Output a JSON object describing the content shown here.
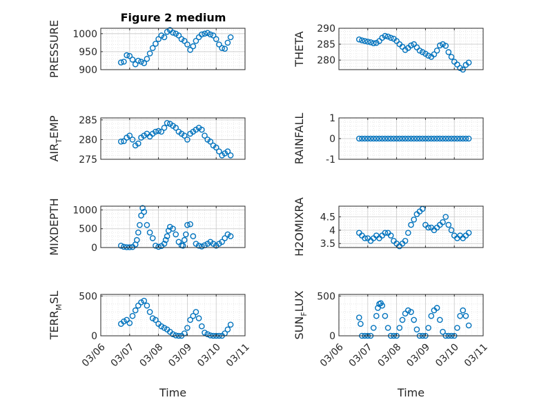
{
  "figure_title": "Figure 2 medium",
  "chart_data": [
    {
      "type": "scatter",
      "col": 0,
      "row": 0,
      "ylabel": "PRESSURE",
      "ylim": [
        900,
        1015
      ],
      "yticks": [
        900,
        950,
        1000
      ],
      "ytick_labels": [
        "900",
        "950",
        "1000"
      ],
      "xlim": [
        0,
        5
      ],
      "xticks": [
        0,
        1,
        2,
        3,
        4,
        5
      ],
      "x": [
        0.7,
        0.8,
        0.9,
        1.0,
        1.1,
        1.2,
        1.3,
        1.4,
        1.5,
        1.6,
        1.7,
        1.8,
        1.9,
        2.0,
        2.1,
        2.2,
        2.3,
        2.4,
        2.5,
        2.6,
        2.7,
        2.8,
        2.9,
        3.0,
        3.1,
        3.2,
        3.3,
        3.4,
        3.5,
        3.6,
        3.7,
        3.8,
        3.9,
        4.0,
        4.1,
        4.2,
        4.3,
        4.4,
        4.5
      ],
      "y": [
        920,
        922,
        940,
        938,
        928,
        915,
        925,
        922,
        918,
        930,
        945,
        960,
        972,
        985,
        995,
        990,
        1005,
        1010,
        1003,
        1000,
        995,
        985,
        980,
        970,
        955,
        965,
        980,
        990,
        998,
        1000,
        1002,
        998,
        995,
        985,
        970,
        960,
        958,
        975,
        990
      ]
    },
    {
      "type": "scatter",
      "col": 1,
      "row": 0,
      "ylabel": "THETA",
      "ylim": [
        277,
        290
      ],
      "yticks": [
        280,
        285,
        290
      ],
      "ytick_labels": [
        "280",
        "285",
        "290"
      ],
      "xlim": [
        0,
        5
      ],
      "xticks": [
        0,
        1,
        2,
        3,
        4,
        5
      ],
      "x": [
        0.7,
        0.8,
        0.9,
        1.0,
        1.1,
        1.2,
        1.3,
        1.4,
        1.5,
        1.6,
        1.7,
        1.8,
        1.9,
        2.0,
        2.1,
        2.2,
        2.3,
        2.4,
        2.5,
        2.6,
        2.7,
        2.8,
        2.9,
        3.0,
        3.1,
        3.2,
        3.3,
        3.4,
        3.5,
        3.6,
        3.7,
        3.8,
        3.9,
        4.0,
        4.1,
        4.2,
        4.3,
        4.4,
        4.5
      ],
      "y": [
        286.5,
        286.2,
        286,
        285.8,
        285.6,
        285.3,
        285.4,
        286,
        287,
        287.6,
        287.4,
        287,
        286.7,
        286,
        285,
        284.2,
        283.2,
        283.8,
        284.6,
        285,
        284,
        283,
        282.5,
        282,
        281.4,
        281,
        281.8,
        283,
        284.6,
        285,
        284.5,
        282.5,
        281,
        279.5,
        278.6,
        277.5,
        277,
        278.5,
        279.2
      ]
    },
    {
      "type": "scatter",
      "col": 0,
      "row": 1,
      "ylabel": "AIR_TEMP",
      "ylabel_main": "AIR",
      "ylabel_sub": "T",
      "ylabel_rest": "EMP",
      "ylim": [
        275,
        285.5
      ],
      "yticks": [
        275,
        280,
        285
      ],
      "ytick_labels": [
        "275",
        "280",
        "285"
      ],
      "xlim": [
        0,
        5
      ],
      "xticks": [
        0,
        1,
        2,
        3,
        4,
        5
      ],
      "x": [
        0.7,
        0.8,
        0.9,
        1.0,
        1.1,
        1.2,
        1.3,
        1.4,
        1.5,
        1.6,
        1.7,
        1.8,
        1.9,
        2.0,
        2.1,
        2.2,
        2.3,
        2.4,
        2.5,
        2.6,
        2.7,
        2.8,
        2.9,
        3.0,
        3.1,
        3.2,
        3.3,
        3.4,
        3.5,
        3.6,
        3.7,
        3.8,
        3.9,
        4.0,
        4.1,
        4.2,
        4.3,
        4.4,
        4.5
      ],
      "y": [
        279.5,
        279.6,
        280.5,
        281,
        280,
        278.5,
        279,
        280.5,
        281,
        281.5,
        280.8,
        281.5,
        282,
        282.2,
        282,
        283,
        284.2,
        284,
        283.5,
        283,
        282,
        281.5,
        281,
        280,
        281.5,
        282,
        282.5,
        283,
        282.5,
        281,
        280,
        279.5,
        278.5,
        278,
        277,
        276,
        276.5,
        277,
        276
      ]
    },
    {
      "type": "scatter",
      "col": 1,
      "row": 1,
      "ylabel": "RAINFALL",
      "ylim": [
        -1,
        1
      ],
      "yticks": [
        -1,
        0,
        1
      ],
      "ytick_labels": [
        "-1",
        "0",
        "1"
      ],
      "xlim": [
        0,
        5
      ],
      "xticks": [
        0,
        1,
        2,
        3,
        4,
        5
      ],
      "x": [
        0.7,
        0.8,
        0.9,
        1.0,
        1.1,
        1.2,
        1.3,
        1.4,
        1.5,
        1.6,
        1.7,
        1.8,
        1.9,
        2.0,
        2.1,
        2.2,
        2.3,
        2.4,
        2.5,
        2.6,
        2.7,
        2.8,
        2.9,
        3.0,
        3.1,
        3.2,
        3.3,
        3.4,
        3.5,
        3.6,
        3.7,
        3.8,
        3.9,
        4.0,
        4.1,
        4.2,
        4.3,
        4.4,
        4.5
      ],
      "y": [
        0,
        0,
        0,
        0,
        0,
        0,
        0,
        0,
        0,
        0,
        0,
        0,
        0,
        0,
        0,
        0,
        0,
        0,
        0,
        0,
        0,
        0,
        0,
        0,
        0,
        0,
        0,
        0,
        0,
        0,
        0,
        0,
        0,
        0,
        0,
        0,
        0,
        0,
        0
      ]
    },
    {
      "type": "scatter",
      "col": 0,
      "row": 2,
      "ylabel": "MIXDEPTH",
      "ylim": [
        0,
        1100
      ],
      "yticks": [
        0,
        500,
        1000
      ],
      "ytick_labels": [
        "0",
        "500",
        "1000"
      ],
      "xlim": [
        0,
        5
      ],
      "xticks": [
        0,
        1,
        2,
        3,
        4,
        5
      ],
      "x": [
        0.7,
        0.8,
        0.9,
        1.0,
        1.1,
        1.2,
        1.25,
        1.3,
        1.35,
        1.4,
        1.45,
        1.5,
        1.6,
        1.7,
        1.8,
        1.9,
        2.0,
        2.1,
        2.2,
        2.25,
        2.3,
        2.35,
        2.4,
        2.5,
        2.6,
        2.7,
        2.8,
        2.85,
        2.9,
        2.95,
        3.0,
        3.1,
        3.2,
        3.3,
        3.4,
        3.5,
        3.6,
        3.7,
        3.8,
        3.9,
        4.0,
        4.1,
        4.2,
        4.3,
        4.4,
        4.5
      ],
      "y": [
        50,
        20,
        10,
        10,
        15,
        80,
        200,
        400,
        600,
        850,
        1050,
        950,
        600,
        400,
        250,
        50,
        20,
        40,
        100,
        200,
        300,
        450,
        550,
        500,
        350,
        150,
        60,
        50,
        200,
        350,
        600,
        620,
        300,
        100,
        50,
        30,
        60,
        100,
        150,
        100,
        50,
        100,
        150,
        250,
        350,
        300
      ]
    },
    {
      "type": "scatter",
      "col": 1,
      "row": 2,
      "ylabel": "H2OMIXRA",
      "ylim": [
        3.35,
        4.9
      ],
      "yticks": [
        3.5,
        4,
        4.5
      ],
      "ytick_labels": [
        "3.5",
        "4",
        "4.5"
      ],
      "xlim": [
        0,
        5
      ],
      "xticks": [
        0,
        1,
        2,
        3,
        4,
        5
      ],
      "x": [
        0.7,
        0.8,
        0.9,
        1.0,
        1.1,
        1.2,
        1.3,
        1.4,
        1.5,
        1.6,
        1.7,
        1.8,
        1.9,
        2.0,
        2.1,
        2.2,
        2.3,
        2.4,
        2.5,
        2.6,
        2.7,
        2.8,
        2.9,
        3.0,
        3.1,
        3.2,
        3.3,
        3.4,
        3.5,
        3.6,
        3.7,
        3.8,
        3.9,
        4.0,
        4.1,
        4.2,
        4.3,
        4.4,
        4.5
      ],
      "y": [
        3.9,
        3.8,
        3.7,
        3.7,
        3.6,
        3.7,
        3.8,
        3.7,
        3.8,
        3.9,
        3.9,
        3.8,
        3.6,
        3.5,
        3.4,
        3.5,
        3.6,
        3.9,
        4.2,
        4.4,
        4.6,
        4.7,
        4.8,
        4.2,
        4.1,
        4.1,
        4.0,
        4.1,
        4.2,
        4.3,
        4.5,
        4.2,
        4.0,
        3.8,
        3.7,
        3.8,
        3.7,
        3.8,
        3.9
      ]
    },
    {
      "type": "scatter",
      "col": 0,
      "row": 3,
      "ylabel": "TERR_MSL",
      "ylabel_main": "TERR",
      "ylabel_sub": "M",
      "ylabel_rest": "SL",
      "ylim": [
        0,
        520
      ],
      "yticks": [
        0,
        500
      ],
      "ytick_labels": [
        "0",
        "500"
      ],
      "xlim": [
        0,
        5
      ],
      "xticks": [
        0,
        1,
        2,
        3,
        4,
        5
      ],
      "x": [
        0.7,
        0.8,
        0.9,
        1.0,
        1.1,
        1.2,
        1.3,
        1.4,
        1.5,
        1.6,
        1.7,
        1.8,
        1.9,
        2.0,
        2.1,
        2.2,
        2.3,
        2.4,
        2.5,
        2.6,
        2.7,
        2.8,
        2.9,
        3.0,
        3.1,
        3.2,
        3.3,
        3.4,
        3.5,
        3.6,
        3.7,
        3.8,
        3.9,
        4.0,
        4.1,
        4.2,
        4.3,
        4.4,
        4.5
      ],
      "y": [
        150,
        180,
        200,
        160,
        250,
        320,
        380,
        420,
        440,
        380,
        300,
        220,
        200,
        150,
        120,
        100,
        80,
        50,
        20,
        5,
        0,
        0,
        30,
        100,
        200,
        250,
        300,
        220,
        120,
        40,
        20,
        5,
        0,
        0,
        0,
        0,
        30,
        80,
        140
      ]
    },
    {
      "type": "scatter",
      "col": 1,
      "row": 3,
      "ylabel": "SUN_FLUX",
      "ylabel_main": "SUN",
      "ylabel_sub": "F",
      "ylabel_rest": "LUX",
      "ylim": [
        0,
        520
      ],
      "yticks": [
        0,
        500
      ],
      "ytick_labels": [
        "0",
        "500"
      ],
      "xlim": [
        0,
        5
      ],
      "xticks": [
        0,
        1,
        2,
        3,
        4,
        5
      ],
      "x": [
        0.7,
        0.75,
        0.8,
        0.9,
        1.0,
        1.1,
        1.2,
        1.3,
        1.35,
        1.4,
        1.45,
        1.5,
        1.6,
        1.7,
        1.8,
        1.9,
        2.0,
        2.1,
        2.2,
        2.3,
        2.4,
        2.5,
        2.6,
        2.7,
        2.8,
        2.9,
        3.0,
        3.1,
        3.2,
        3.3,
        3.4,
        3.5,
        3.6,
        3.7,
        3.8,
        3.9,
        4.0,
        4.1,
        4.2,
        4.3,
        4.4,
        4.5
      ],
      "y": [
        230,
        150,
        0,
        0,
        0,
        0,
        100,
        250,
        350,
        400,
        410,
        380,
        250,
        100,
        0,
        0,
        0,
        100,
        200,
        280,
        320,
        300,
        200,
        80,
        0,
        0,
        0,
        100,
        250,
        320,
        350,
        200,
        50,
        0,
        0,
        0,
        0,
        100,
        250,
        320,
        250,
        130
      ]
    }
  ],
  "x_tick_labels": [
    "03/06",
    "03/07",
    "03/08",
    "03/09",
    "03/10",
    "03/11"
  ],
  "xlabel": "Time",
  "colors": {
    "marker": "#0072BD",
    "axis": "#262626",
    "grid": "#c8c8c8",
    "minor_grid": "#dddddd"
  }
}
